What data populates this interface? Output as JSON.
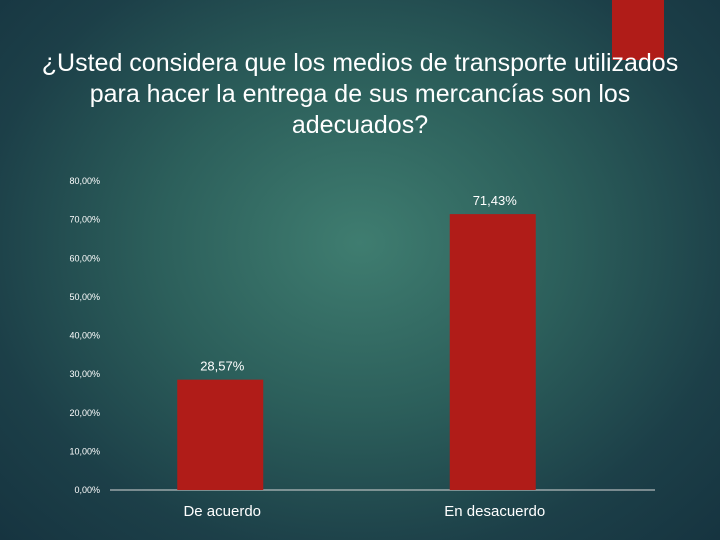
{
  "slide": {
    "title": "¿Usted considera que los medios de transporte utilizados para hacer la entrega de sus mercancías son los adecuados?",
    "accent_color": "#b01c18"
  },
  "chart_data": {
    "type": "bar",
    "title": "¿Usted considera que los medios de transporte utilizados para hacer la entrega de sus mercancías son los adecuados?",
    "categories": [
      "De acuerdo",
      "En desacuerdo"
    ],
    "values": [
      28.57,
      71.43
    ],
    "data_labels": [
      "28,57%",
      "71,43%"
    ],
    "ylim": [
      0,
      80
    ],
    "yticks": [
      0,
      10,
      20,
      30,
      40,
      50,
      60,
      70,
      80
    ],
    "ytick_labels": [
      "0,00%",
      "10,00%",
      "20,00%",
      "30,00%",
      "40,00%",
      "50,00%",
      "60,00%",
      "70,00%",
      "80,00%"
    ],
    "bar_color": "#b01c18",
    "grid": false,
    "legend": "none"
  }
}
